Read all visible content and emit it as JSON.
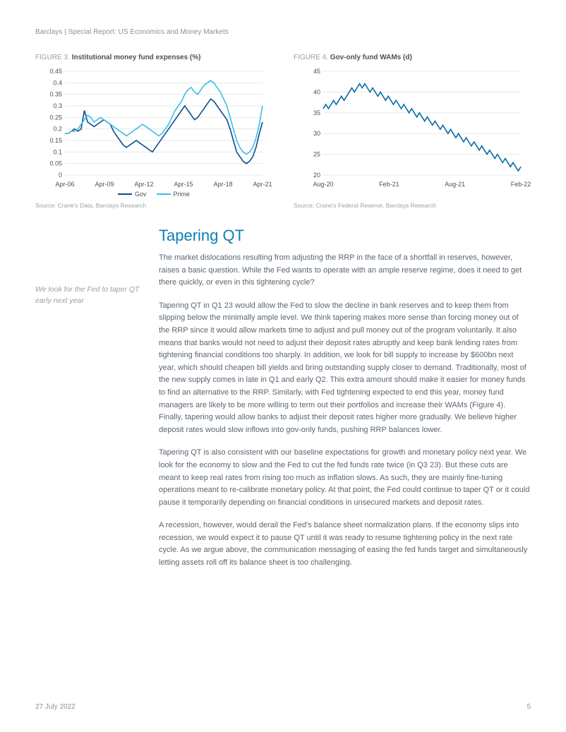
{
  "header": "Barclays | Special Report: US Economics and Money Markets",
  "accent_color": "#0e7db8",
  "figure3": {
    "label": "FIGURE 3.",
    "title": "Institutional money fund expenses (%)",
    "type": "line",
    "xlabels": [
      "Apr-06",
      "Apr-09",
      "Apr-12",
      "Apr-15",
      "Apr-18",
      "Apr-21"
    ],
    "ylim": [
      0,
      0.45
    ],
    "yticks": [
      0,
      0.05,
      0.1,
      0.15,
      0.2,
      0.25,
      0.3,
      0.35,
      0.4,
      0.45
    ],
    "series": [
      {
        "name": "Gov",
        "color": "#0a4d8c",
        "values": [
          0.18,
          0.18,
          0.19,
          0.2,
          0.19,
          0.2,
          0.28,
          0.23,
          0.22,
          0.21,
          0.22,
          0.23,
          0.24,
          0.23,
          0.22,
          0.19,
          0.17,
          0.15,
          0.13,
          0.12,
          0.13,
          0.14,
          0.15,
          0.14,
          0.13,
          0.12,
          0.11,
          0.1,
          0.12,
          0.14,
          0.16,
          0.18,
          0.2,
          0.22,
          0.24,
          0.26,
          0.28,
          0.3,
          0.28,
          0.26,
          0.24,
          0.25,
          0.27,
          0.29,
          0.31,
          0.33,
          0.32,
          0.3,
          0.28,
          0.26,
          0.24,
          0.2,
          0.15,
          0.1,
          0.08,
          0.06,
          0.05,
          0.06,
          0.08,
          0.12,
          0.18,
          0.23
        ]
      },
      {
        "name": "Prime",
        "color": "#3dbce8",
        "values": [
          0.18,
          0.18,
          0.19,
          0.19,
          0.2,
          0.22,
          0.24,
          0.26,
          0.25,
          0.23,
          0.24,
          0.25,
          0.24,
          0.23,
          0.22,
          0.21,
          0.2,
          0.19,
          0.18,
          0.17,
          0.18,
          0.19,
          0.2,
          0.21,
          0.22,
          0.21,
          0.2,
          0.19,
          0.18,
          0.17,
          0.18,
          0.2,
          0.22,
          0.25,
          0.28,
          0.3,
          0.32,
          0.35,
          0.37,
          0.38,
          0.36,
          0.35,
          0.37,
          0.39,
          0.4,
          0.41,
          0.4,
          0.38,
          0.36,
          0.33,
          0.3,
          0.25,
          0.2,
          0.15,
          0.12,
          0.1,
          0.09,
          0.1,
          0.12,
          0.16,
          0.22,
          0.3
        ]
      }
    ],
    "source": "Source: Crane's Data, Barclays Research"
  },
  "figure4": {
    "label": "FIGURE 4.",
    "title": "Gov-only fund WAMs (d)",
    "type": "line",
    "xlabels": [
      "Aug-20",
      "Feb-21",
      "Aug-21",
      "Feb-22"
    ],
    "ylim": [
      20,
      45
    ],
    "yticks": [
      20,
      25,
      30,
      35,
      40,
      45
    ],
    "series": [
      {
        "name": "WAM",
        "color": "#0a6aa8",
        "values": [
          36,
          37,
          36,
          37,
          38,
          37,
          38,
          39,
          38,
          39,
          40,
          41,
          40,
          41,
          42,
          41,
          42,
          41,
          40,
          41,
          40,
          39,
          40,
          39,
          38,
          39,
          38,
          37,
          38,
          37,
          36,
          37,
          36,
          35,
          36,
          35,
          34,
          35,
          34,
          33,
          34,
          33,
          32,
          33,
          32,
          31,
          32,
          31,
          30,
          31,
          30,
          29,
          30,
          29,
          28,
          29,
          28,
          27,
          28,
          27,
          26,
          27,
          26,
          25,
          26,
          25,
          24,
          25,
          24,
          23,
          24,
          23,
          22,
          23,
          22,
          21,
          22
        ]
      }
    ],
    "source": "Source: Crane's Federal Reserve, Barclays Research"
  },
  "sidebar_note": "We look for the Fed to taper QT early next year",
  "heading": "Tapering QT",
  "paragraphs": [
    "The market dislocations resulting from adjusting the RRP in the face of a shortfall in reserves, however, raises a basic question. While the Fed wants to operate with an ample reserve regime, does it need to get there quickly, or even in this tightening cycle?",
    "Tapering QT in Q1 23 would allow the Fed to slow the decline in bank reserves and to keep them from slipping below the minimally ample level. We think tapering makes more sense than forcing money out of the RRP since it would allow markets time to adjust and pull money out of the program voluntarily. It also means that banks would not need to adjust their deposit rates abruptly and keep bank lending rates from tightening financial conditions too sharply. In addition, we look for bill supply to increase by $600bn next year, which should cheapen bill yields and bring outstanding supply closer to demand. Traditionally, most of the new supply comes in late in Q1 and early Q2. This extra amount should make it easier for money funds to find an alternative to the RRP. Similarly, with Fed tightening expected to end this year, money fund managers are likely to be more willing to term out their portfolios and increase their WAMs (Figure 4). Finally, tapering  would allow banks to adjust  their deposit rates higher more gradually. We believe higher deposit rates would slow inflows into gov-only funds, pushing RRP balances lower.",
    "Tapering QT is also consistent with our baseline expectations for growth and monetary policy next year. We look for the economy to slow and the Fed to cut the fed funds rate twice (in Q3 23). But these cuts are meant to keep real rates from rising too much as inflation slows. As such, they are mainly fine-tuning operations meant to re-calibrate monetary policy. At that point, the Fed could continue to taper QT or it could pause it temporarily depending on  financial conditions in unsecured markets and deposit rates.",
    "A recession, however, would derail the Fed's balance sheet normalization plans. If the economy slips into recession, we would expect it to pause QT until it was ready to resume tightening policy in the next rate cycle. As we argue above, the communication messaging of easing the fed funds target and simultaneously letting assets roll off its balance sheet is too challenging."
  ],
  "footer_date": "27 July 2022",
  "footer_page": "5"
}
